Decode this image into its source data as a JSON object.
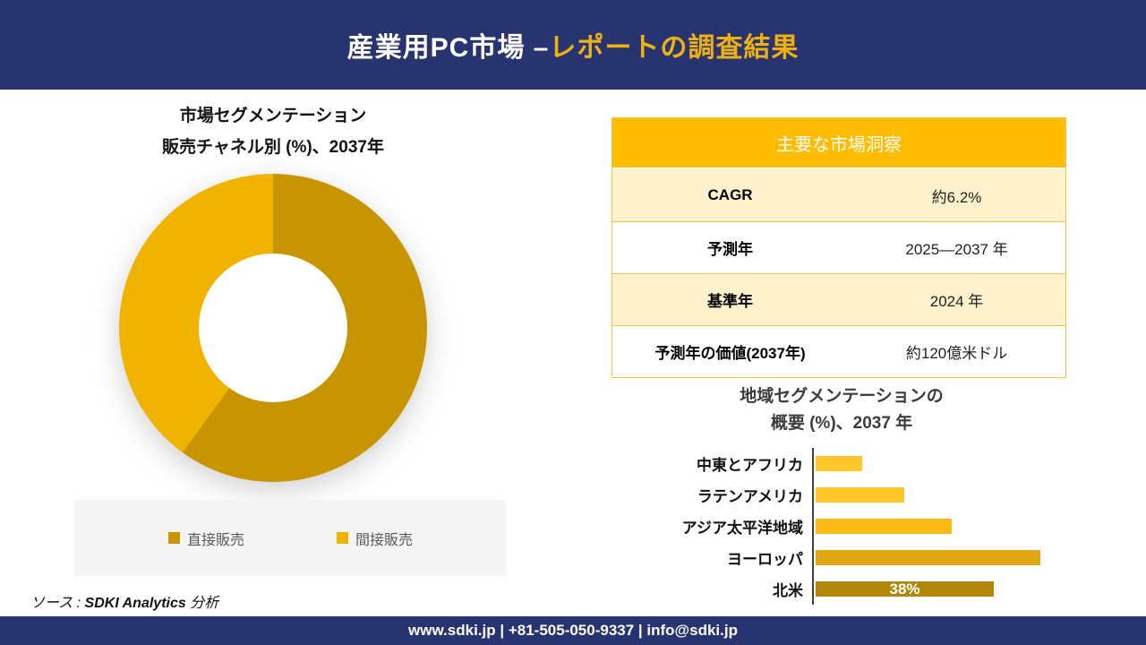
{
  "header": {
    "title_main": "産業用PC市場 –",
    "title_accent": "レポートの調査結果"
  },
  "chart_data": [
    {
      "type": "pie",
      "subtype": "donut",
      "title": "市場セグメンテーション",
      "subtitle": "販売チャネル別 (%)、2037年",
      "labels": [
        "直接販売",
        "間接販売"
      ],
      "values": [
        60,
        40
      ],
      "values_are_estimated_from_arc_angles": true,
      "colors": [
        "#C89500",
        "#F0B400"
      ],
      "legend_position": "bottom",
      "data_labels_shown": false
    },
    {
      "type": "bar",
      "orientation": "horizontal",
      "title": "地域セグメンテーションの",
      "subtitle": "概要 (%)、2037 年",
      "categories": [
        "中東とアフリカ",
        "ラテンアメリカ",
        "アジア太平洋地域",
        "ヨーロッパ",
        "北米"
      ],
      "values": [
        10,
        19,
        29,
        48,
        38
      ],
      "values_are_estimated_except_labeled": true,
      "xmax": 52,
      "bar_colors": [
        "#FFC72C",
        "#FFC72C",
        "#FBBB16",
        "#DFA713",
        "#B1860B"
      ],
      "data_labels": [
        "",
        "",
        "",
        "",
        "38%"
      ],
      "grid": false,
      "axis_line": "left-vertical"
    },
    {
      "type": "table",
      "title": "主要な市場洞察",
      "rows": [
        {
          "label": "CAGR",
          "value": "約6.2%"
        },
        {
          "label": "予測年",
          "value": "2025—2037 年"
        },
        {
          "label": "基準年",
          "value": "2024 年"
        },
        {
          "label": "予測年の価値(2037年)",
          "value": "約120億米ドル"
        }
      ]
    }
  ],
  "source": {
    "prefix": "ソース : ",
    "name": "SDKI Analytics",
    "suffix": " 分析"
  },
  "footer": {
    "contact_line": "www.sdki.jp | +81-505-050-9337 | info@sdki.jp"
  },
  "colors": {
    "navy": "#273470",
    "accent": "#EEB111",
    "table_header_gold": "#FFBC00",
    "table_row_cream": "#FFF2CC",
    "table_border": "#F6C344",
    "legend_bg": "#F5F5F5",
    "text_gray": "#595959",
    "bar_axis": "#404040"
  }
}
